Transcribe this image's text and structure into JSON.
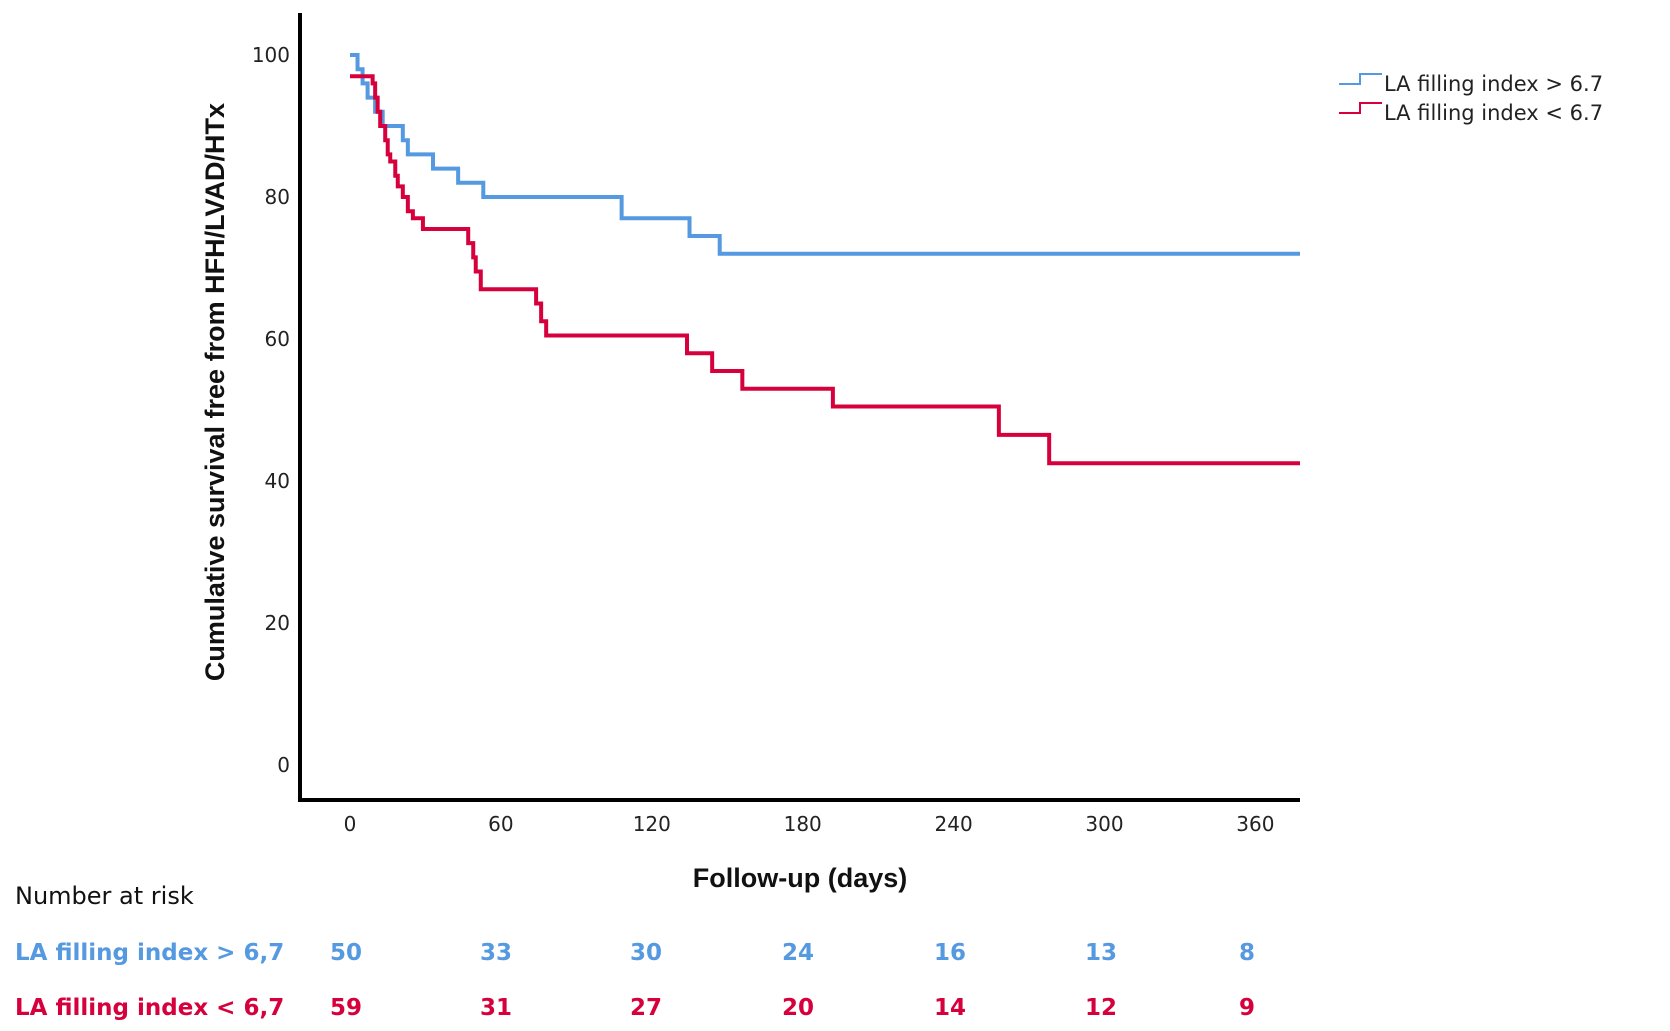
{
  "colors": {
    "series_high": "#5599e0",
    "series_low": "#d6003c",
    "axis": "#000000"
  },
  "chart_data": {
    "type": "line",
    "subtype": "kaplan-meier step",
    "xlabel": "Follow-up (days)",
    "ylabel": "Cumulative survival free from HFH/LVAD/HTx",
    "xlim": [
      -20,
      380
    ],
    "ylim": [
      -5,
      106
    ],
    "xticks": [
      0,
      60,
      120,
      180,
      240,
      300,
      360
    ],
    "yticks": [
      0,
      20,
      40,
      60,
      80,
      100
    ],
    "legend_position": "top-right",
    "grid": false,
    "series": [
      {
        "name": "LA filling index > 6.7",
        "color": "#5599e0",
        "points": [
          [
            0,
            100
          ],
          [
            3,
            98
          ],
          [
            5,
            96
          ],
          [
            7,
            94
          ],
          [
            10,
            92
          ],
          [
            13,
            90
          ],
          [
            21,
            88
          ],
          [
            23,
            86
          ],
          [
            33,
            84
          ],
          [
            43,
            82
          ],
          [
            53,
            80
          ],
          [
            108,
            77
          ],
          [
            135,
            74.5
          ],
          [
            147,
            72
          ],
          [
            380,
            72
          ]
        ]
      },
      {
        "name": "LA filling index < 6.7",
        "color": "#d6003c",
        "points": [
          [
            0,
            97
          ],
          [
            9,
            96
          ],
          [
            10,
            94
          ],
          [
            11,
            92
          ],
          [
            12,
            90
          ],
          [
            14,
            88
          ],
          [
            15,
            86
          ],
          [
            16,
            85
          ],
          [
            18,
            83
          ],
          [
            19,
            81.5
          ],
          [
            21,
            80
          ],
          [
            23,
            78
          ],
          [
            25,
            77
          ],
          [
            29,
            75.5
          ],
          [
            47,
            73.5
          ],
          [
            49,
            71.5
          ],
          [
            50,
            69.5
          ],
          [
            52,
            67
          ],
          [
            74,
            65
          ],
          [
            76,
            62.5
          ],
          [
            78,
            60.5
          ],
          [
            134,
            58
          ],
          [
            144,
            55.5
          ],
          [
            156,
            53
          ],
          [
            192,
            50.5
          ],
          [
            258,
            46.5
          ],
          [
            278,
            42.5
          ],
          [
            380,
            42.5
          ]
        ]
      }
    ],
    "risk_table": {
      "title": "Number at risk",
      "times": [
        0,
        60,
        120,
        180,
        240,
        300,
        360
      ],
      "rows": [
        {
          "label": "LA filling index > 6,7",
          "color": "#5599e0",
          "values": [
            "50",
            "33",
            "30",
            "24",
            "16",
            "13",
            "8"
          ]
        },
        {
          "label": "LA filling index < 6,7",
          "color": "#d6003c",
          "values": [
            "59",
            "31",
            "27",
            "20",
            "14",
            "12",
            "9"
          ]
        }
      ]
    }
  }
}
